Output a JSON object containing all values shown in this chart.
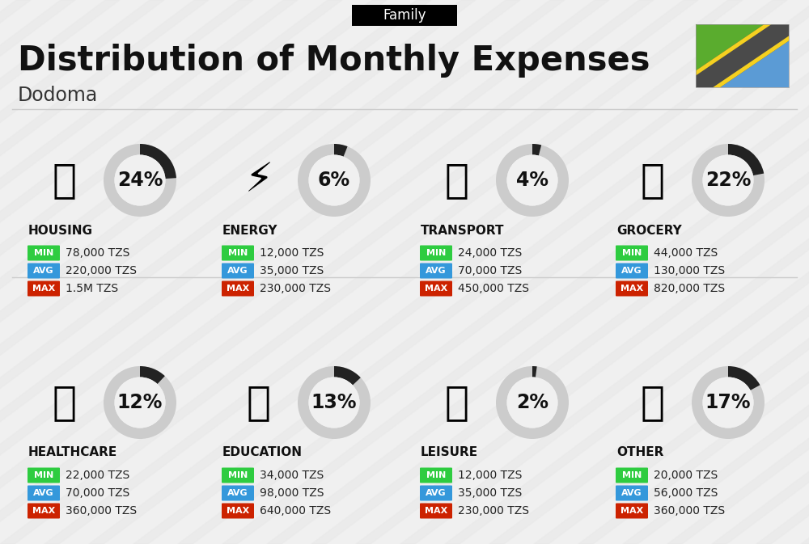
{
  "title": "Distribution of Monthly Expenses",
  "subtitle": "Family",
  "city": "Dodoma",
  "background_color": "#f0f0f0",
  "categories": [
    {
      "name": "HOUSING",
      "pct": 24,
      "min": "78,000 TZS",
      "avg": "220,000 TZS",
      "max": "1.5M TZS",
      "row": 0,
      "col": 0
    },
    {
      "name": "ENERGY",
      "pct": 6,
      "min": "12,000 TZS",
      "avg": "35,000 TZS",
      "max": "230,000 TZS",
      "row": 0,
      "col": 1
    },
    {
      "name": "TRANSPORT",
      "pct": 4,
      "min": "24,000 TZS",
      "avg": "70,000 TZS",
      "max": "450,000 TZS",
      "row": 0,
      "col": 2
    },
    {
      "name": "GROCERY",
      "pct": 22,
      "min": "44,000 TZS",
      "avg": "130,000 TZS",
      "max": "820,000 TZS",
      "row": 0,
      "col": 3
    },
    {
      "name": "HEALTHCARE",
      "pct": 12,
      "min": "22,000 TZS",
      "avg": "70,000 TZS",
      "max": "360,000 TZS",
      "row": 1,
      "col": 0
    },
    {
      "name": "EDUCATION",
      "pct": 13,
      "min": "34,000 TZS",
      "avg": "98,000 TZS",
      "max": "640,000 TZS",
      "row": 1,
      "col": 1
    },
    {
      "name": "LEISURE",
      "pct": 2,
      "min": "12,000 TZS",
      "avg": "35,000 TZS",
      "max": "230,000 TZS",
      "row": 1,
      "col": 2
    },
    {
      "name": "OTHER",
      "pct": 17,
      "min": "20,000 TZS",
      "avg": "56,000 TZS",
      "max": "360,000 TZS",
      "row": 1,
      "col": 3
    }
  ],
  "min_color": "#2ecc40",
  "avg_color": "#3498db",
  "max_color": "#cc2200",
  "donut_filled_color": "#222222",
  "donut_empty_color": "#cccccc",
  "title_fontsize": 30,
  "subtitle_fontsize": 12,
  "city_fontsize": 17,
  "cat_name_fontsize": 11,
  "pct_fontsize": 17,
  "value_fontsize": 10,
  "flag_green": "#5aac2e",
  "flag_blue": "#5b9bd5",
  "flag_black": "#4a4a4a",
  "flag_yellow": "#f5d020"
}
